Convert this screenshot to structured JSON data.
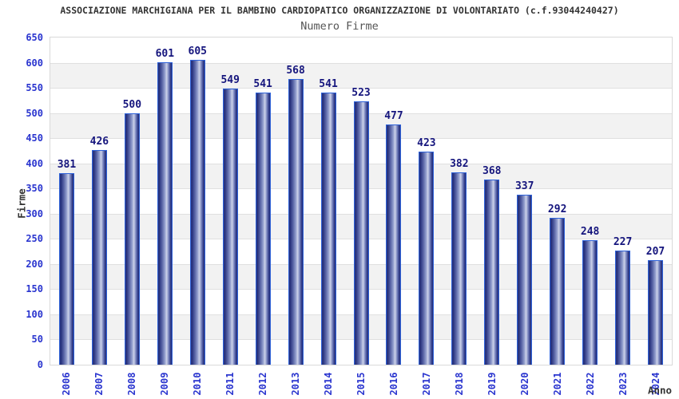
{
  "chart_data": {
    "type": "bar",
    "title": "ASSOCIAZIONE MARCHIGIANA PER IL BAMBINO CARDIOPATICO ORGANIZZAZIONE DI VOLONTARIATO (c.f.93044240427)",
    "subtitle": "Numero Firme",
    "xlabel": "Anno",
    "ylabel": "Firme",
    "categories": [
      "2006",
      "2007",
      "2008",
      "2009",
      "2010",
      "2011",
      "2012",
      "2013",
      "2014",
      "2015",
      "2016",
      "2017",
      "2018",
      "2019",
      "2020",
      "2021",
      "2022",
      "2023",
      "2024"
    ],
    "values": [
      381,
      426,
      500,
      601,
      605,
      549,
      541,
      568,
      541,
      523,
      477,
      423,
      382,
      368,
      337,
      292,
      248,
      227,
      207
    ],
    "ylim": [
      0,
      650
    ],
    "yticks": [
      0,
      50,
      100,
      150,
      200,
      250,
      300,
      350,
      400,
      450,
      500,
      550,
      600,
      650
    ],
    "grid": "horizontal",
    "legend": "none",
    "colors": {
      "bar_dark": "#252f7b",
      "bar_mid": "#96a1cf",
      "bar_highlight": "#cdd3ea",
      "bar_outline": "#2e62d9",
      "axis_tick_label": "#2a35cf",
      "value_label": "#15157d",
      "title_text": "#333333",
      "subtitle_text": "#555555",
      "band_gray": "#f2f2f2",
      "band_white": "#ffffff",
      "gridline": "#e0e0e0",
      "plot_border": "#d9d9d9",
      "background": "#ffffff"
    }
  }
}
